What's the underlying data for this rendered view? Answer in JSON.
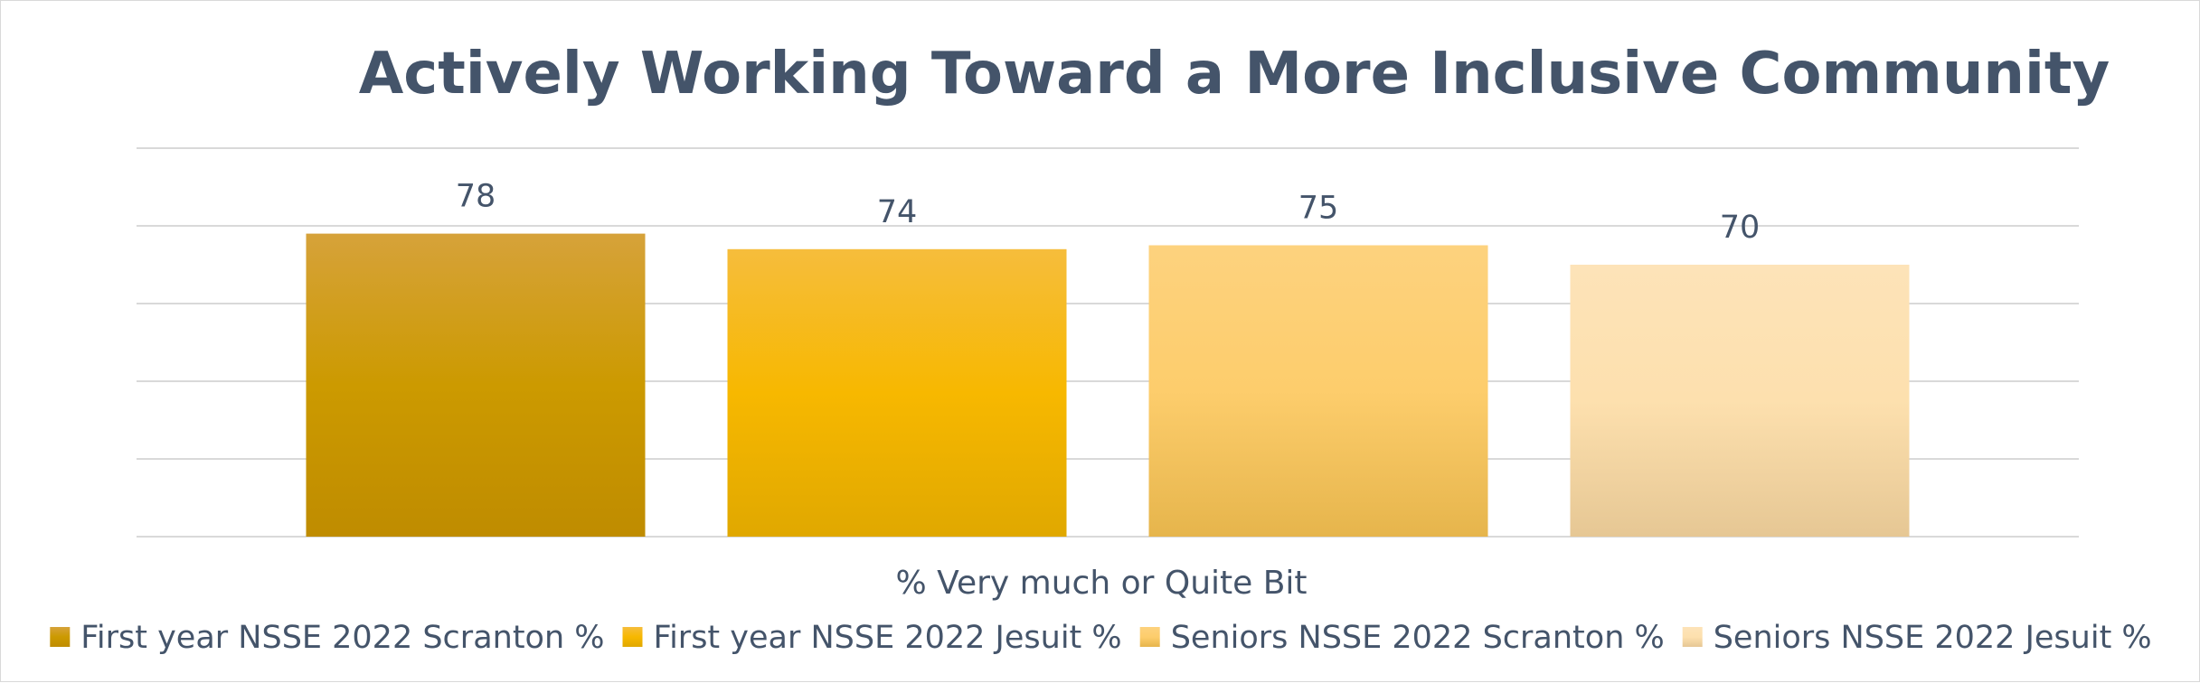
{
  "chart_data": {
    "type": "bar",
    "title": "Actively Working Toward a More Inclusive Community",
    "xlabel": "% Very much or Quite  Bit",
    "ylabel": "",
    "ylim": [
      0,
      100
    ],
    "grid": true,
    "legend_position": "bottom",
    "categories": [
      "% Very much or Quite  Bit"
    ],
    "series": [
      {
        "name": "First year NSSE 2022 Scranton %",
        "values": [
          78
        ],
        "label": "78",
        "color": "#cc9900",
        "color_top": "#d6a23a",
        "color_mid": "#cc9a00",
        "color_bottom": "#bf8c00"
      },
      {
        "name": "First year NSSE 2022 Jesuit %",
        "values": [
          74
        ],
        "label": "74",
        "color": "#f5b800",
        "color_top": "#f6bd3c",
        "color_mid": "#f7b800",
        "color_bottom": "#e0a800"
      },
      {
        "name": "Seniors NSSE 2022 Scranton %",
        "values": [
          75
        ],
        "label": "75",
        "color": "#fdcb6e",
        "color_top": "#fdd27e",
        "color_mid": "#fdcd6c",
        "color_bottom": "#e6b54c"
      },
      {
        "name": "Seniors NSSE 2022 Jesuit %",
        "values": [
          70
        ],
        "label": "70",
        "color": "#fde0b0",
        "color_top": "#fde3b8",
        "color_mid": "#fde0ae",
        "color_bottom": "#e6c794"
      }
    ]
  }
}
